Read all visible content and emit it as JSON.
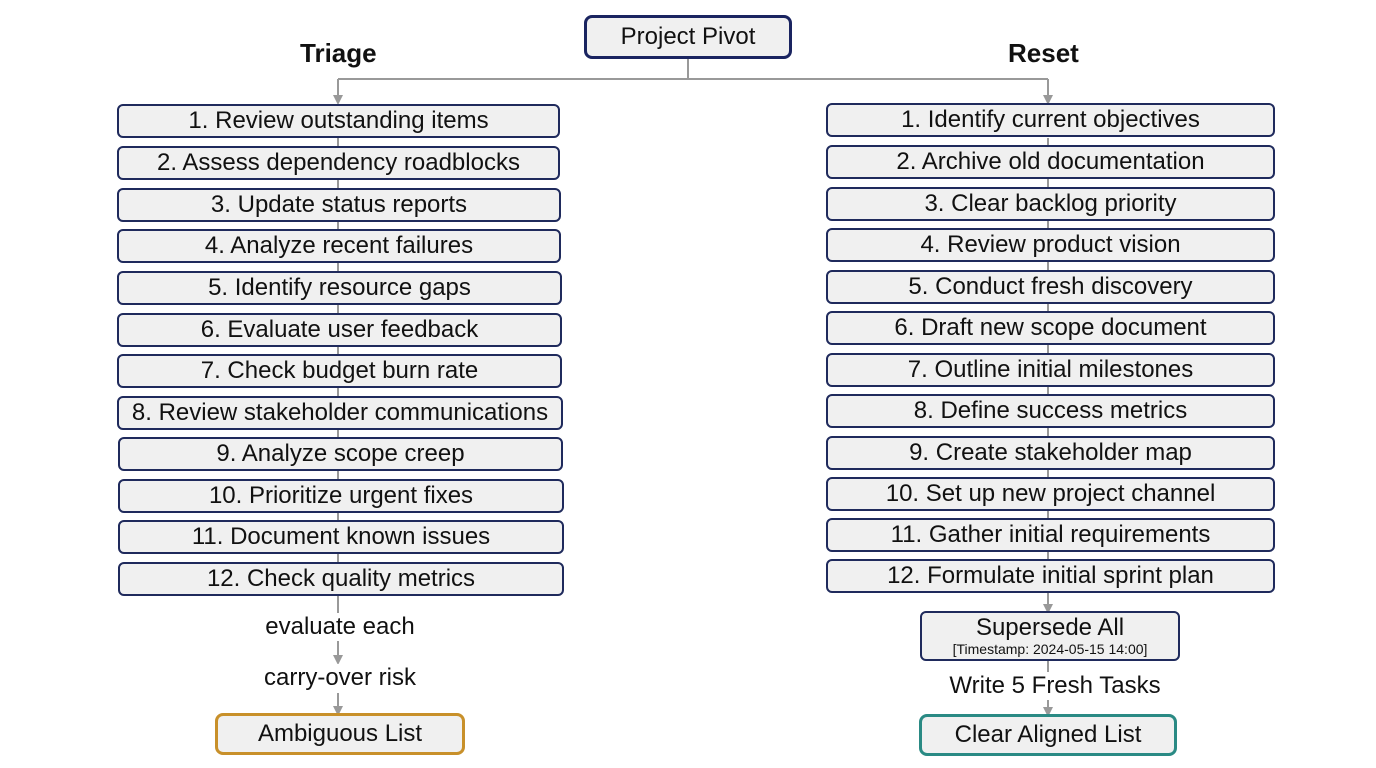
{
  "root": {
    "label": "Project Pivot"
  },
  "left": {
    "title": "Triage",
    "steps": [
      "1. Review outstanding items",
      "2. Assess dependency roadblocks",
      "3. Update status reports",
      "4. Analyze recent failures",
      "5. Identify resource gaps",
      "6. Evaluate user feedback",
      "7. Check budget burn rate",
      "8. Review stakeholder communications",
      "9. Analyze scope creep",
      "10. Prioritize urgent fixes",
      "11. Document known issues",
      "12. Check quality metrics"
    ],
    "flow_label_1": "evaluate each",
    "flow_label_2": "carry-over risk",
    "outcome": "Ambiguous List",
    "outcome_color": "#c8902a"
  },
  "right": {
    "title": "Reset",
    "steps": [
      "1. Identify current objectives",
      "2. Archive old documentation",
      "3. Clear backlog priority",
      "4. Review product vision",
      "5. Conduct fresh discovery",
      "6. Draft new scope document",
      "7. Outline initial milestones",
      "8. Define success metrics",
      "9. Create stakeholder map",
      "10. Set up new project channel",
      "11. Gather initial requirements",
      "12. Formulate initial sprint plan"
    ],
    "supersede": {
      "label": "Supersede All",
      "timestamp": "[Timestamp: 2024-05-15 14:00]"
    },
    "flow_label": "Write 5 Fresh Tasks",
    "outcome": "Clear Aligned List",
    "outcome_color": "#2a8a84"
  },
  "colors": {
    "box_border": "#1f2a5c",
    "box_fill": "#f0f0f0",
    "connector": "#999999"
  }
}
